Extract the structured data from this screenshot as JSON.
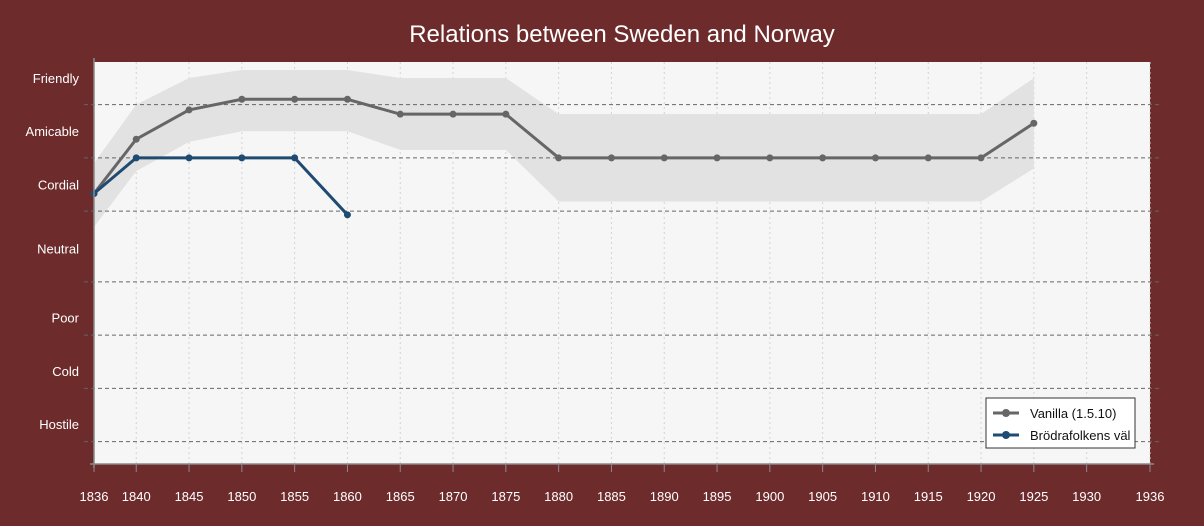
{
  "chart_data": {
    "type": "line",
    "title": "Relations between Sweden and Norway",
    "xlabel": "",
    "ylabel": "",
    "xlim": [
      1836,
      1936
    ],
    "x_ticks": [
      1836,
      1840,
      1845,
      1850,
      1855,
      1860,
      1865,
      1870,
      1875,
      1880,
      1885,
      1890,
      1895,
      1900,
      1905,
      1910,
      1915,
      1920,
      1925,
      1930,
      1936
    ],
    "ylim": [
      -0.75,
      6.8
    ],
    "y_categories": [
      {
        "label": "Friendly",
        "value": 6.5
      },
      {
        "label": "Amicable",
        "value": 5.5
      },
      {
        "label": "Cordial",
        "value": 4.5
      },
      {
        "label": "Neutral",
        "value": 3.3
      },
      {
        "label": "Poor",
        "value": 2.0
      },
      {
        "label": "Cold",
        "value": 1.0
      },
      {
        "label": "Hostile",
        "value": 0.0
      }
    ],
    "band_boundaries": [
      7.0,
      6.0,
      5.0,
      4.0,
      2.67,
      1.67,
      0.67,
      -0.33
    ],
    "series": [
      {
        "name": "Vanilla (1.5.10)",
        "color": "#666666",
        "x": [
          1836,
          1840,
          1845,
          1850,
          1855,
          1860,
          1865,
          1870,
          1875,
          1880,
          1885,
          1890,
          1895,
          1900,
          1905,
          1910,
          1915,
          1920,
          1925
        ],
        "y": [
          4.33,
          5.35,
          5.9,
          6.1,
          6.1,
          6.1,
          5.82,
          5.82,
          5.82,
          5.0,
          5.0,
          5.0,
          5.0,
          5.0,
          5.0,
          5.0,
          5.0,
          5.0,
          5.65
        ],
        "band_upper": [
          4.9,
          6.0,
          6.5,
          6.65,
          6.65,
          6.65,
          6.5,
          6.5,
          6.5,
          5.82,
          5.82,
          5.82,
          5.82,
          5.82,
          5.82,
          5.82,
          5.82,
          5.82,
          6.5
        ],
        "band_lower": [
          3.7,
          4.75,
          5.3,
          5.5,
          5.5,
          5.5,
          5.15,
          5.15,
          5.15,
          4.18,
          4.18,
          4.18,
          4.18,
          4.18,
          4.18,
          4.18,
          4.18,
          4.18,
          4.8
        ]
      },
      {
        "name": "Brödrafolkens väl",
        "color": "#1f4a72",
        "x": [
          1836,
          1840,
          1845,
          1850,
          1855,
          1860
        ],
        "y": [
          4.33,
          5.0,
          5.0,
          5.0,
          5.0,
          3.93
        ]
      }
    ],
    "legend": {
      "position": "bottom-right"
    }
  },
  "colors": {
    "background": "#6d2b2c",
    "plot_area": "#f6f6f6",
    "band": "#e2e2e2",
    "grid": "#666666"
  }
}
